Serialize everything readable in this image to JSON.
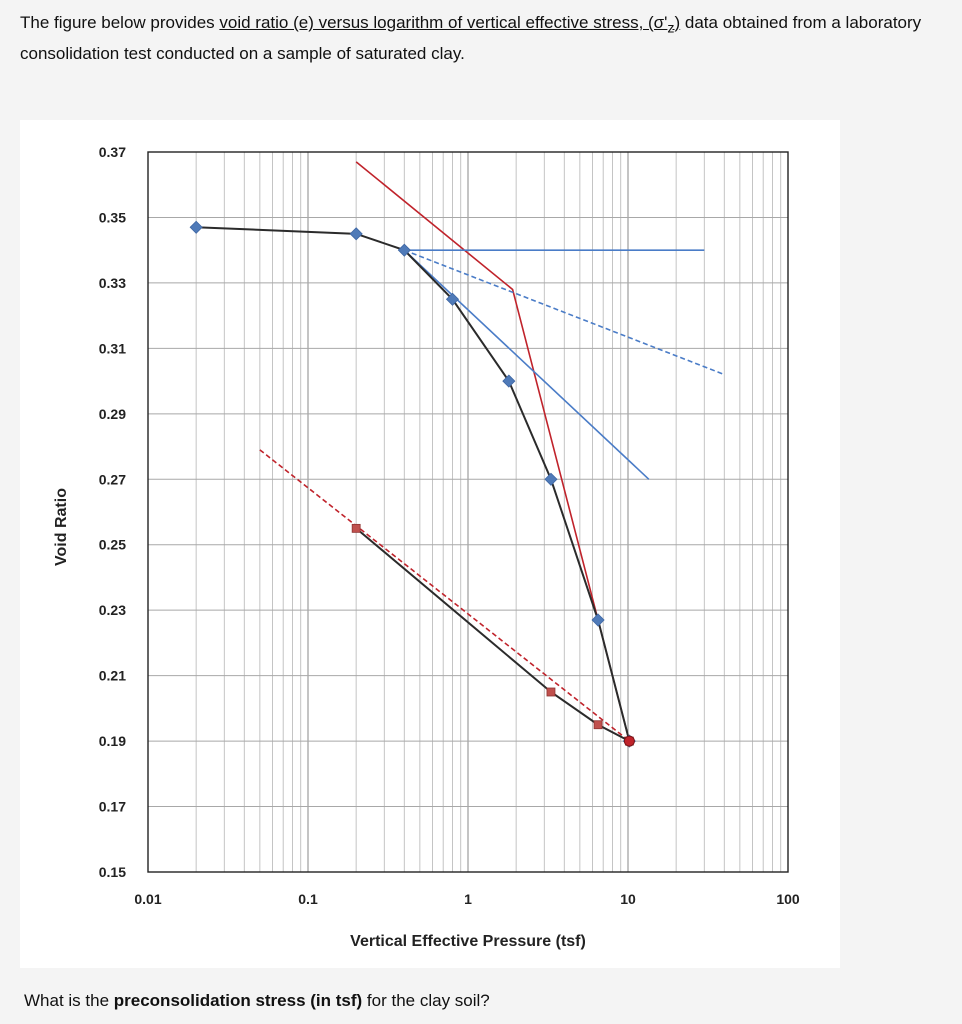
{
  "intro": {
    "part1": "The figure below provides ",
    "link": "void ratio (e) versus logarithm of vertical effective stress, (σ'",
    "link_sub": "z",
    "link_end": ")",
    "part2": " data obtained from a laboratory consolidation test conducted on a sample of saturated clay."
  },
  "question": {
    "before": "What is the ",
    "bold": "preconsolidation stress (in tsf)",
    "after": " for the clay soil?"
  },
  "chart_data": {
    "type": "line",
    "xlabel": "Vertical Effective Pressure (tsf)",
    "ylabel": "Void Ratio",
    "xscale": "log",
    "xlim": [
      0.01,
      100
    ],
    "ylim": [
      0.15,
      0.37
    ],
    "x_ticks": [
      0.01,
      0.1,
      1,
      10,
      100
    ],
    "x_tick_labels": [
      "0.01",
      "0.1",
      "1",
      "10",
      "100"
    ],
    "y_ticks": [
      0.15,
      0.17,
      0.19,
      0.21,
      0.23,
      0.25,
      0.27,
      0.29,
      0.31,
      0.33,
      0.35,
      0.37
    ],
    "y_tick_labels": [
      "0.15",
      "0.17",
      "0.19",
      "0.21",
      "0.23",
      "0.25",
      "0.27",
      "0.29",
      "0.31",
      "0.33",
      "0.35",
      "0.37"
    ],
    "grid": true,
    "legend": "none",
    "series": [
      {
        "kind": "loading",
        "color": "#2b2b2b",
        "marker": "diamond",
        "marker_color": "#4f7ab8",
        "points": [
          [
            0.02,
            0.347
          ],
          [
            0.2,
            0.345
          ],
          [
            0.4,
            0.34
          ],
          [
            0.8,
            0.325
          ],
          [
            1.8,
            0.3
          ],
          [
            3.3,
            0.27
          ],
          [
            6.5,
            0.227
          ],
          [
            10.2,
            0.19
          ]
        ]
      },
      {
        "kind": "unloading",
        "color": "#2b2b2b",
        "marker": "square",
        "marker_color": "#c0504d",
        "points": [
          [
            10.2,
            0.19
          ],
          [
            6.5,
            0.195
          ],
          [
            3.3,
            0.205
          ],
          [
            0.2,
            0.255
          ]
        ]
      }
    ],
    "construction_lines": [
      {
        "style": "solid",
        "color": "#c0232b",
        "points": [
          [
            0.2,
            0.367
          ],
          [
            1.9,
            0.328
          ],
          [
            10.2,
            0.19
          ]
        ]
      },
      {
        "style": "solid",
        "color": "#4a7cc7",
        "points": [
          [
            0.4,
            0.34
          ],
          [
            30,
            0.34
          ]
        ]
      },
      {
        "style": "dashed",
        "color": "#4a7cc7",
        "points": [
          [
            0.4,
            0.34
          ],
          [
            40,
            0.302
          ]
        ]
      },
      {
        "style": "solid",
        "color": "#4a7cc7",
        "points": [
          [
            0.4,
            0.34
          ],
          [
            13.5,
            0.27
          ]
        ]
      },
      {
        "style": "dashed",
        "color": "#c0232b",
        "points": [
          [
            0.05,
            0.279
          ],
          [
            10.2,
            0.19
          ]
        ]
      }
    ],
    "highlight_point": {
      "x": 10.2,
      "y": 0.19,
      "color": "#c0232b"
    }
  }
}
